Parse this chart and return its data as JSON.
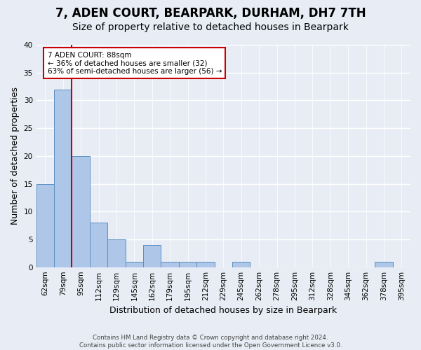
{
  "title": "7, ADEN COURT, BEARPARK, DURHAM, DH7 7TH",
  "subtitle": "Size of property relative to detached houses in Bearpark",
  "xlabel": "Distribution of detached houses by size in Bearpark",
  "ylabel": "Number of detached properties",
  "categories": [
    "62sqm",
    "79sqm",
    "95sqm",
    "112sqm",
    "129sqm",
    "145sqm",
    "162sqm",
    "179sqm",
    "195sqm",
    "212sqm",
    "229sqm",
    "245sqm",
    "262sqm",
    "278sqm",
    "295sqm",
    "312sqm",
    "328sqm",
    "345sqm",
    "362sqm",
    "378sqm",
    "395sqm"
  ],
  "values": [
    15,
    32,
    20,
    8,
    5,
    1,
    4,
    1,
    1,
    1,
    0,
    1,
    0,
    0,
    0,
    0,
    0,
    0,
    0,
    1,
    0
  ],
  "bar_color": "#aec6e8",
  "bar_edge_color": "#5a8fc2",
  "vline_x": 1.5,
  "vline_color": "#cc0000",
  "annotation_text": "7 ADEN COURT: 88sqm\n← 36% of detached houses are smaller (32)\n63% of semi-detached houses are larger (56) →",
  "annotation_box_facecolor": "#ffffff",
  "annotation_box_edgecolor": "#cc0000",
  "ylim": [
    0,
    40
  ],
  "yticks": [
    0,
    5,
    10,
    15,
    20,
    25,
    30,
    35,
    40
  ],
  "title_fontsize": 12,
  "subtitle_fontsize": 10,
  "ylabel_fontsize": 9,
  "xlabel_fontsize": 9,
  "tick_fontsize": 7.5,
  "annotation_fontsize": 7.5,
  "footer_text": "Contains HM Land Registry data © Crown copyright and database right 2024.\nContains public sector information licensed under the Open Government Licence v3.0.",
  "background_color": "#e8edf5",
  "grid_color": "#ffffff"
}
